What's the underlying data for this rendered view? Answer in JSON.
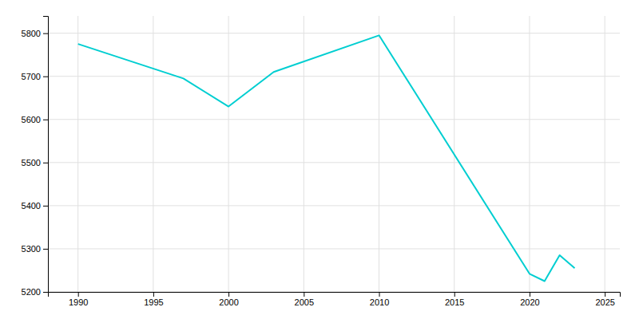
{
  "chart_data": {
    "type": "line",
    "x": [
      1990,
      1997,
      2000,
      2003,
      2010,
      2020,
      2021,
      2022,
      2023
    ],
    "values": [
      5775,
      5695,
      5630,
      5710,
      5795,
      5242,
      5225,
      5285,
      5255
    ],
    "color": "#00CED1",
    "xlim": [
      1988,
      2026
    ],
    "ylim": [
      5200,
      5840
    ],
    "xticks": [
      1990,
      1995,
      2000,
      2005,
      2010,
      2015,
      2020,
      2025
    ],
    "yticks": [
      5200,
      5300,
      5400,
      5500,
      5600,
      5700,
      5800
    ],
    "grid": true
  }
}
